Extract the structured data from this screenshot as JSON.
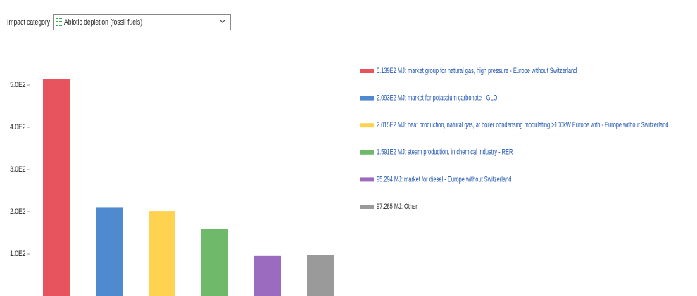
{
  "dropdown": {
    "label": "Impact category",
    "value": "Abiotic depletion (fossil fuels)"
  },
  "chart_data": {
    "type": "bar",
    "categories": [
      "5.139E2 MJ: market group for natural gas, high pressure - Europe without Switzerland",
      "2.093E2 MJ: market for potassium carbonate - GLO",
      "2.015E2 MJ: heat production, natural gas, at boiler condensing modulating >100kW Europe with - Europe without Switzerland",
      "1.591E2 MJ: steam production, in chemical industry - RER",
      "95.294 MJ: market for diesel - Europe without Switzerland",
      "97.285 MJ: Other"
    ],
    "values": [
      513.9,
      209.3,
      201.5,
      159.1,
      95.294,
      97.285
    ],
    "colors": [
      "#e8545e",
      "#4f8ad0",
      "#ffd24f",
      "#6fb96b",
      "#9a6bbf",
      "#9a9a9a"
    ],
    "ylim": [
      0,
      550
    ],
    "yticks": [
      {
        "value": 100,
        "label": "1.0E2"
      },
      {
        "value": 200,
        "label": "2.0E2"
      },
      {
        "value": 300,
        "label": "3.0E2"
      },
      {
        "value": 400,
        "label": "4.0E2"
      },
      {
        "value": 500,
        "label": "5.0E2"
      }
    ],
    "grid": false
  }
}
